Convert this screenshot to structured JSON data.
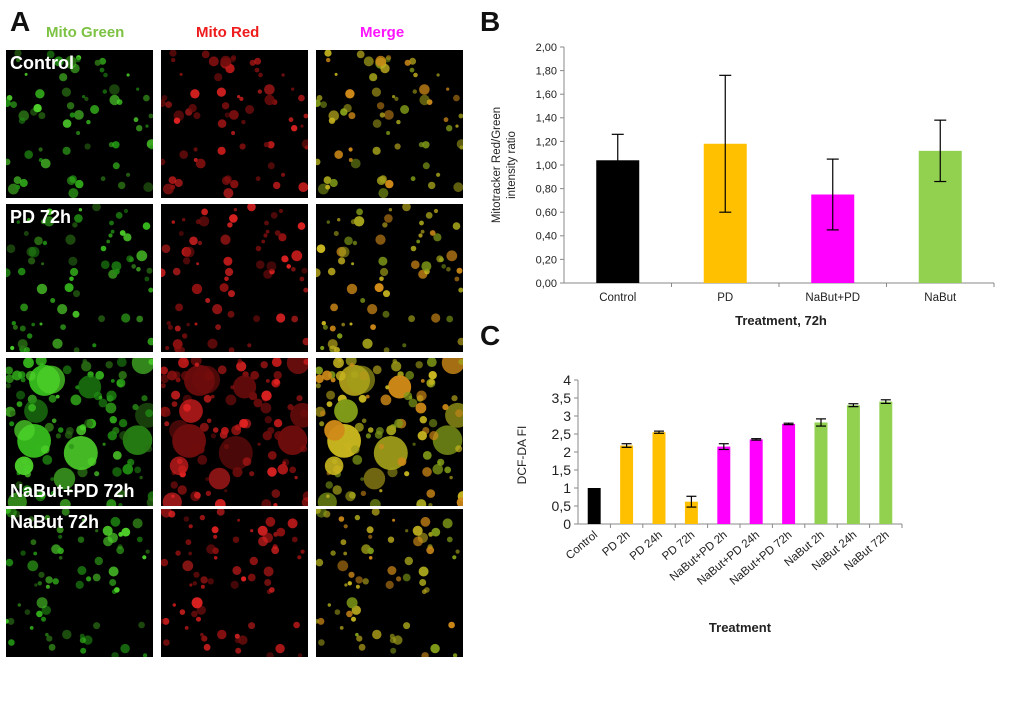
{
  "panel_labels": {
    "a": "A",
    "b": "B",
    "c": "C"
  },
  "micro": {
    "columns": [
      {
        "label": "Mito Green",
        "color": "#7dc243"
      },
      {
        "label": "Mito Red",
        "color": "#ee1c1c"
      },
      {
        "label": "Merge",
        "color": "#ff14ff"
      }
    ],
    "rows": [
      {
        "label": "Control"
      },
      {
        "label": "PD 72h"
      },
      {
        "label": "NaBut+PD 72h"
      },
      {
        "label": "NaBut 72h"
      }
    ]
  },
  "chart_data": [
    {
      "type": "bar",
      "panel": "B",
      "categories": [
        "Control",
        "PD",
        "NaBut+PD",
        "NaBut"
      ],
      "values": [
        1.04,
        1.18,
        0.75,
        1.12
      ],
      "errors": [
        0.22,
        0.58,
        0.3,
        0.26
      ],
      "colors": [
        "#000000",
        "#ffc000",
        "#ff00ff",
        "#92d050"
      ],
      "xlabel": "Treatment, 72h",
      "ylabel": "Mitotracker Red/Green intensity ratio",
      "ylim": [
        0,
        2
      ],
      "yticks": [
        "0,00",
        "0,20",
        "0,40",
        "0,60",
        "0,80",
        "1,00",
        "1,20",
        "1,40",
        "1,60",
        "1,80",
        "2,00"
      ],
      "grid": false
    },
    {
      "type": "bar",
      "panel": "C",
      "categories": [
        "Control",
        "PD 2h",
        "PD 24h",
        "PD 72h",
        "NaBut+PD 2h",
        "NaBut+PD 24h",
        "NaBut+PD 72h",
        "NaBut 2h",
        "NaBut 24h",
        "NaBut 72h"
      ],
      "values": [
        1.0,
        2.18,
        2.55,
        0.62,
        2.15,
        2.35,
        2.78,
        2.82,
        3.3,
        3.4
      ],
      "errors": [
        0,
        0.05,
        0.03,
        0.15,
        0.08,
        0.02,
        0.02,
        0.1,
        0.04,
        0.05
      ],
      "colors": [
        "#000000",
        "#ffc000",
        "#ffc000",
        "#ffc000",
        "#ff00ff",
        "#ff00ff",
        "#ff00ff",
        "#92d050",
        "#92d050",
        "#92d050"
      ],
      "xlabel": "Treatment",
      "ylabel": "DCF-DA FI",
      "ylim": [
        0,
        4
      ],
      "yticks": [
        "0",
        "0,5",
        "1",
        "1,5",
        "2",
        "2,5",
        "3",
        "3,5",
        "4"
      ],
      "grid": false
    }
  ]
}
